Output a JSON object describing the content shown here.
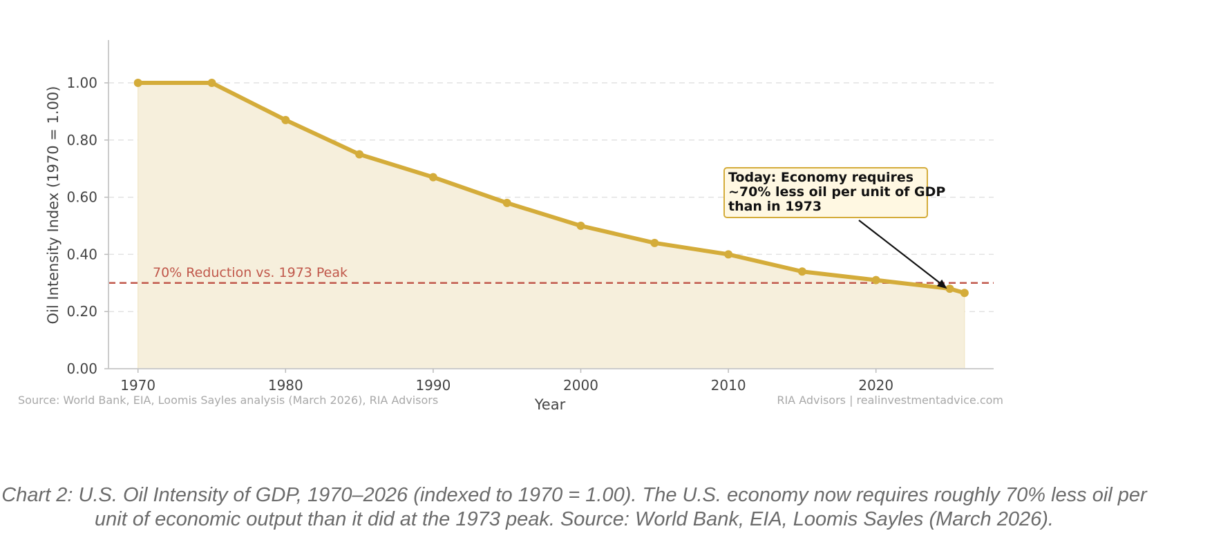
{
  "chart_data": {
    "type": "area",
    "xlabel": "Year",
    "ylabel": "Oil Intensity Index (1970 = 1.00)",
    "xlim": [
      1968,
      2028
    ],
    "ylim": [
      0,
      1.15
    ],
    "xticks": [
      1970,
      1980,
      1990,
      2000,
      2010,
      2020
    ],
    "xtick_labels": [
      "1970",
      "1980",
      "1990",
      "2000",
      "2010",
      "2020"
    ],
    "yticks": [
      0,
      0.2,
      0.4,
      0.6,
      0.8,
      1.0
    ],
    "ytick_labels": [
      "0.00",
      "0.20",
      "0.40",
      "0.60",
      "0.80",
      "1.00"
    ],
    "grid": "horizontal dashed",
    "series": [
      {
        "x": [
          1970,
          1975,
          1980,
          1985,
          1990,
          1995,
          2000,
          2005,
          2010,
          2015,
          2020,
          2025,
          2026
        ],
        "values": [
          1.0,
          1.0,
          0.87,
          0.75,
          0.67,
          0.58,
          0.5,
          0.44,
          0.4,
          0.34,
          0.31,
          0.28,
          0.265
        ],
        "color": "#d4ac3a",
        "fill_color": "#f6efdc"
      }
    ],
    "reference_line": {
      "y": 0.3,
      "label": "70% Reduction vs. 1973 Peak",
      "color": "#c0574a"
    },
    "annotation": {
      "lines": [
        "Today: Economy requires",
        "~70% less oil per unit of GDP",
        "than in 1973"
      ],
      "target_x": 2025,
      "target_y": 0.28,
      "box_fill": "#fff8e2",
      "box_stroke": "#d4ac3a"
    },
    "source_left": "Source: World Bank, EIA, Loomis Sayles analysis (March 2026), RIA Advisors",
    "source_right": "RIA Advisors | realinvestmentadvice.com"
  },
  "caption": "Chart 2: U.S. Oil Intensity of GDP, 1970–2026 (indexed to 1970 = 1.00). The U.S. economy now requires roughly 70% less oil per unit of economic output than it did at the 1973 peak. Source: World Bank, EIA, Loomis Sayles (March 2026)."
}
